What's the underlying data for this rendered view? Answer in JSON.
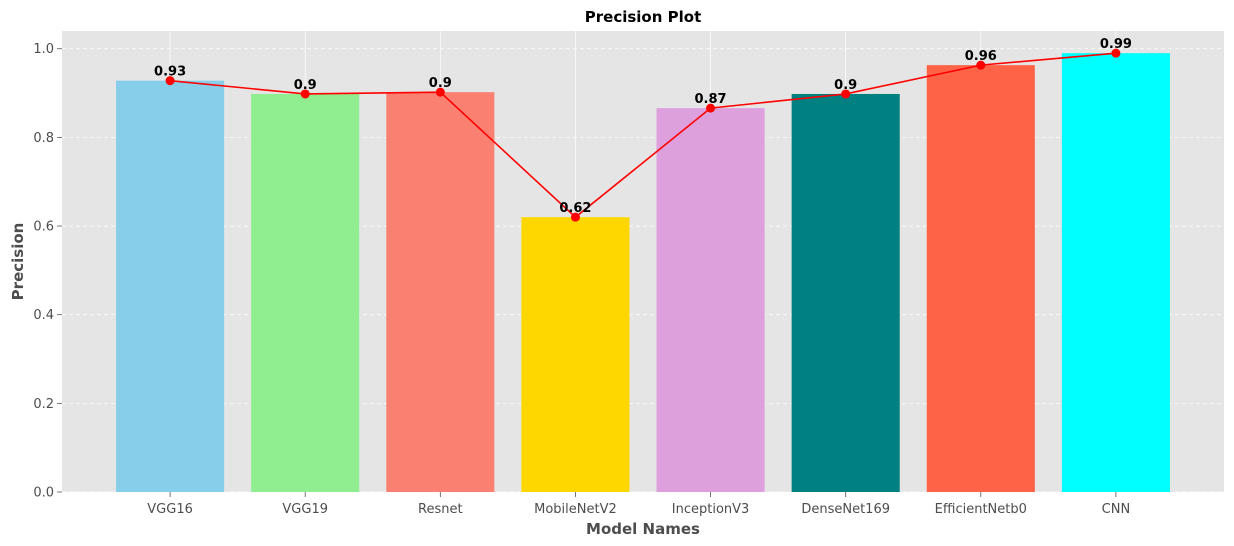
{
  "chart_data": {
    "type": "bar",
    "title": "Precision Plot",
    "xlabel": "Model Names",
    "ylabel": "Precision",
    "categories": [
      "VGG16",
      "VGG19",
      "Resnet",
      "MobileNetV2",
      "InceptionV3",
      "DenseNet169",
      "EfficientNetb0",
      "CNN"
    ],
    "values": [
      0.928,
      0.898,
      0.902,
      0.62,
      0.866,
      0.898,
      0.963,
      0.99
    ],
    "data_labels": [
      "0.93",
      "0.9",
      "0.9",
      "0.62",
      "0.87",
      "0.9",
      "0.96",
      "0.99"
    ],
    "bar_colors": [
      "#87ceeb",
      "#90ee90",
      "#fa8072",
      "#ffd700",
      "#dda0dd",
      "#008080",
      "#ff6347",
      "#00ffff"
    ],
    "line_color": "#ff0000",
    "background_color": "#e5e5e5",
    "ylim": [
      0,
      1.04
    ],
    "yticks": [
      0.0,
      0.2,
      0.4,
      0.6,
      0.8,
      1.0
    ],
    "ytick_labels": [
      "0.0",
      "0.2",
      "0.4",
      "0.6",
      "0.8",
      "1.0"
    ],
    "grid": true,
    "overlay_line": true
  }
}
